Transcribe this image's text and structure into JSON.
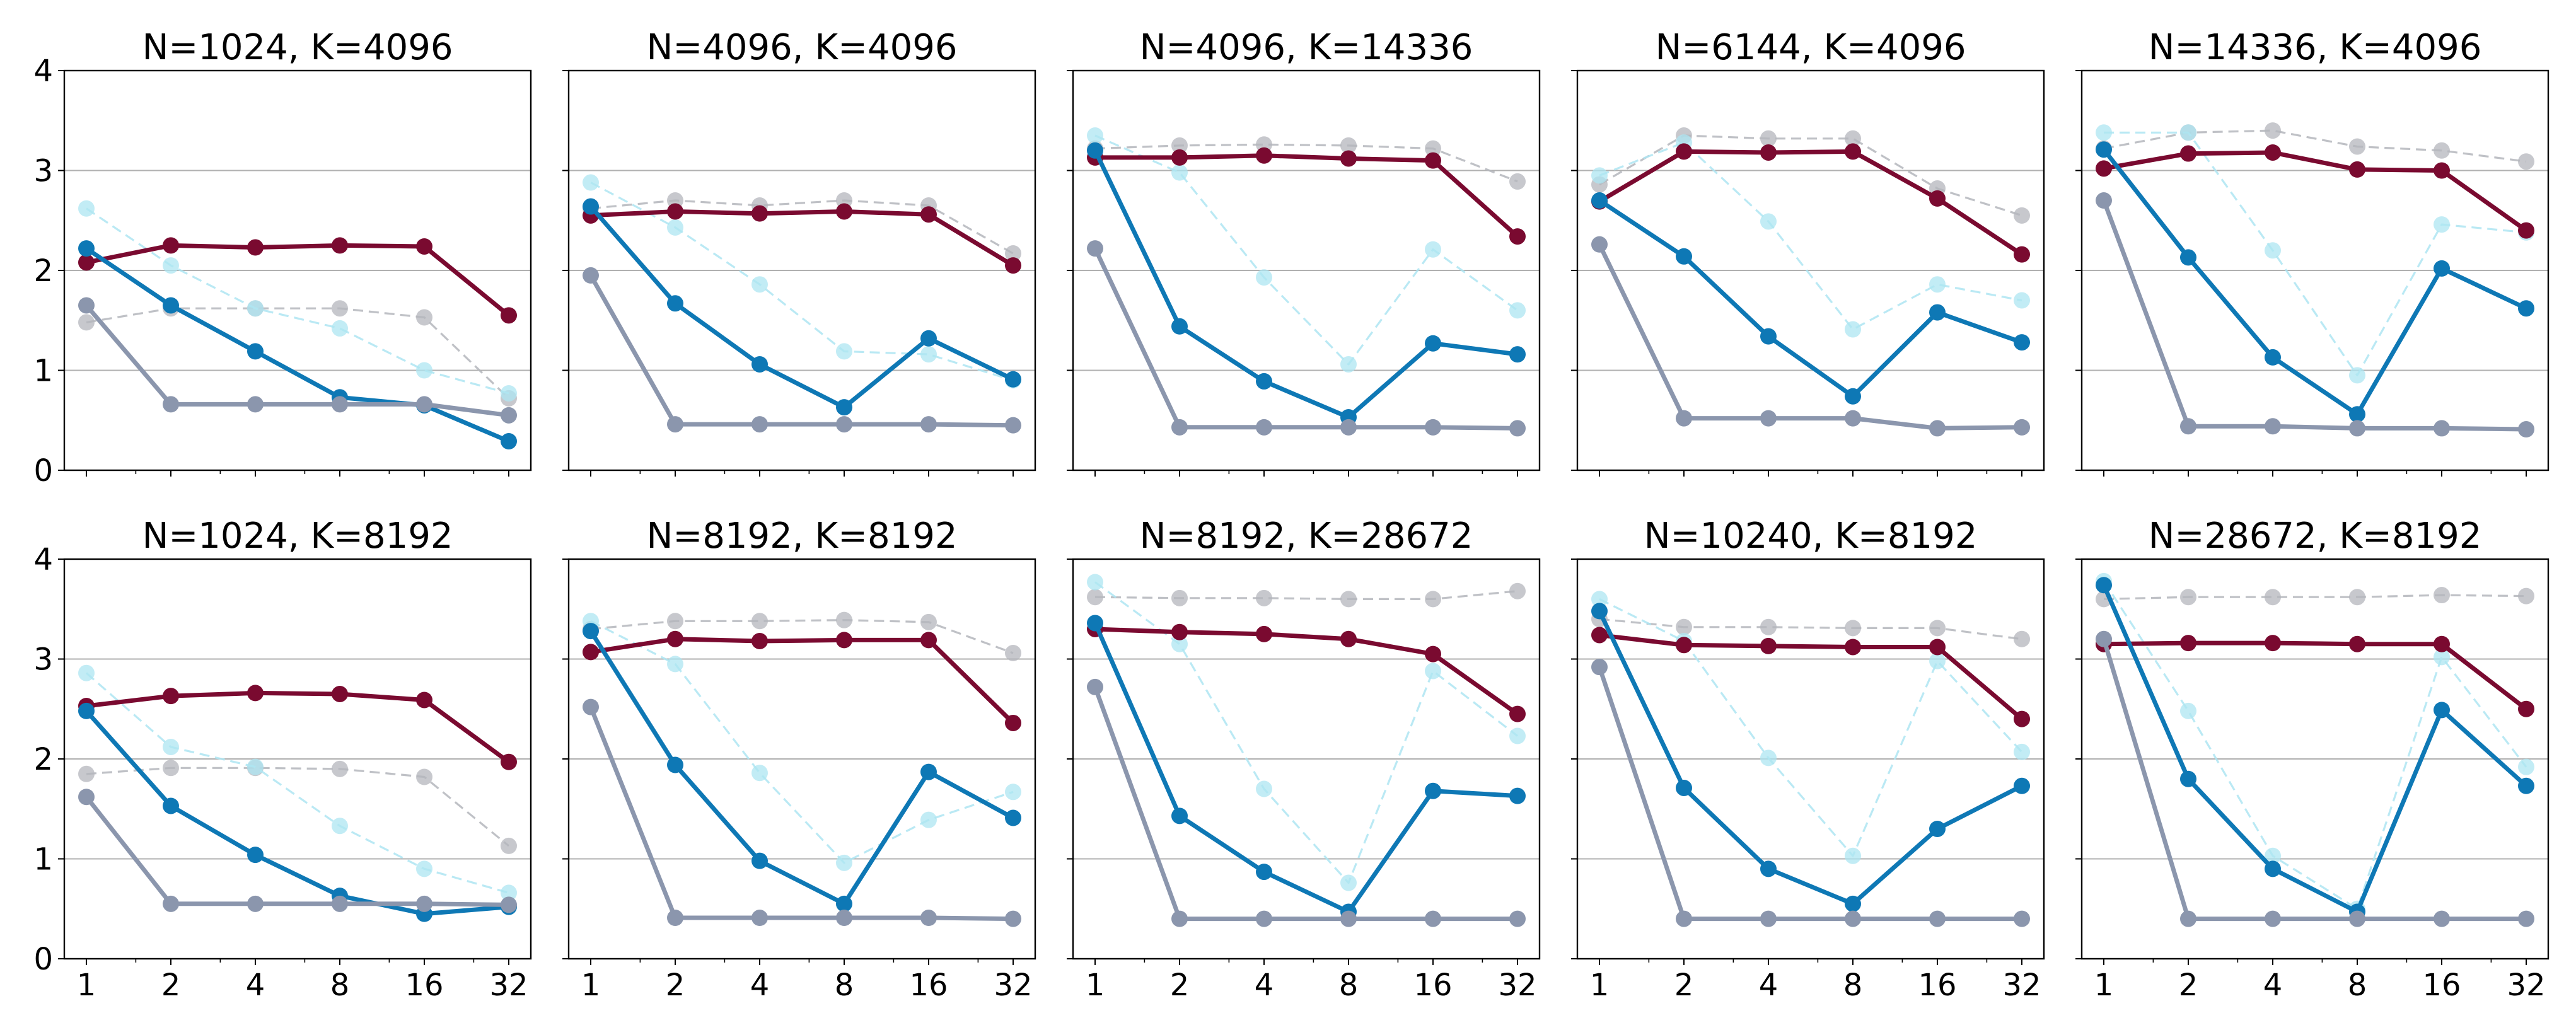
{
  "figure": {
    "chart_data": [
      {
        "type": "line",
        "title": "N=1024, K=4096",
        "x": [
          1,
          2,
          4,
          8,
          16,
          32
        ],
        "xscale": "log2",
        "ylim": [
          0,
          4
        ],
        "yticks": [
          0,
          1,
          2,
          3,
          4
        ],
        "grid": "horizontal",
        "series": [
          {
            "color": "#7a0a30",
            "style": "solid",
            "values": [
              2.08,
              2.25,
              2.23,
              2.25,
              2.24,
              1.55
            ]
          },
          {
            "color": "#0e78b5",
            "style": "solid",
            "values": [
              2.22,
              1.65,
              1.19,
              0.73,
              0.65,
              0.29
            ]
          },
          {
            "color": "#8b96ad",
            "style": "solid",
            "values": [
              1.65,
              0.66,
              0.66,
              0.66,
              0.66,
              0.55
            ]
          },
          {
            "color": "#b4b6bc",
            "style": "dashed",
            "values": [
              1.48,
              1.62,
              1.62,
              1.62,
              1.53,
              0.72
            ]
          },
          {
            "color": "#aee5f2",
            "style": "dashed",
            "values": [
              2.62,
              2.05,
              1.62,
              1.42,
              1.0,
              0.77
            ]
          }
        ]
      },
      {
        "type": "line",
        "title": "N=4096, K=4096",
        "x": [
          1,
          2,
          4,
          8,
          16,
          32
        ],
        "xscale": "log2",
        "ylim": [
          0,
          4
        ],
        "yticks": [
          0,
          1,
          2,
          3,
          4
        ],
        "grid": "horizontal",
        "series": [
          {
            "color": "#7a0a30",
            "style": "solid",
            "values": [
              2.55,
              2.59,
              2.57,
              2.59,
              2.56,
              2.05
            ]
          },
          {
            "color": "#0e78b5",
            "style": "solid",
            "values": [
              2.64,
              1.67,
              1.06,
              0.63,
              1.32,
              0.91
            ]
          },
          {
            "color": "#8b96ad",
            "style": "solid",
            "values": [
              1.95,
              0.46,
              0.46,
              0.46,
              0.46,
              0.45
            ]
          },
          {
            "color": "#b4b6bc",
            "style": "dashed",
            "values": [
              2.62,
              2.7,
              2.65,
              2.7,
              2.65,
              2.17
            ]
          },
          {
            "color": "#aee5f2",
            "style": "dashed",
            "values": [
              2.88,
              2.43,
              1.86,
              1.19,
              1.16,
              0.9
            ]
          }
        ]
      },
      {
        "type": "line",
        "title": "N=4096, K=14336",
        "x": [
          1,
          2,
          4,
          8,
          16,
          32
        ],
        "xscale": "log2",
        "ylim": [
          0,
          4
        ],
        "yticks": [
          0,
          1,
          2,
          3,
          4
        ],
        "grid": "horizontal",
        "series": [
          {
            "color": "#7a0a30",
            "style": "solid",
            "values": [
              3.13,
              3.13,
              3.15,
              3.12,
              3.1,
              2.34
            ]
          },
          {
            "color": "#0e78b5",
            "style": "solid",
            "values": [
              3.2,
              1.44,
              0.89,
              0.53,
              1.27,
              1.16
            ]
          },
          {
            "color": "#8b96ad",
            "style": "solid",
            "values": [
              2.22,
              0.43,
              0.43,
              0.43,
              0.43,
              0.42
            ]
          },
          {
            "color": "#b4b6bc",
            "style": "dashed",
            "values": [
              3.22,
              3.25,
              3.26,
              3.25,
              3.22,
              2.89
            ]
          },
          {
            "color": "#aee5f2",
            "style": "dashed",
            "values": [
              3.35,
              2.98,
              1.93,
              1.06,
              2.21,
              1.6
            ]
          }
        ]
      },
      {
        "type": "line",
        "title": "N=6144, K=4096",
        "x": [
          1,
          2,
          4,
          8,
          16,
          32
        ],
        "xscale": "log2",
        "ylim": [
          0,
          4
        ],
        "yticks": [
          0,
          1,
          2,
          3,
          4
        ],
        "grid": "horizontal",
        "series": [
          {
            "color": "#7a0a30",
            "style": "solid",
            "values": [
              2.69,
              3.19,
              3.18,
              3.19,
              2.72,
              2.16
            ]
          },
          {
            "color": "#0e78b5",
            "style": "solid",
            "values": [
              2.7,
              2.14,
              1.34,
              0.74,
              1.58,
              1.28
            ]
          },
          {
            "color": "#8b96ad",
            "style": "solid",
            "values": [
              2.26,
              0.52,
              0.52,
              0.52,
              0.42,
              0.43
            ]
          },
          {
            "color": "#b4b6bc",
            "style": "dashed",
            "values": [
              2.86,
              3.35,
              3.32,
              3.32,
              2.82,
              2.55
            ]
          },
          {
            "color": "#aee5f2",
            "style": "dashed",
            "values": [
              2.95,
              3.28,
              2.49,
              1.41,
              1.86,
              1.7
            ]
          }
        ]
      },
      {
        "type": "line",
        "title": "N=14336, K=4096",
        "x": [
          1,
          2,
          4,
          8,
          16,
          32
        ],
        "xscale": "log2",
        "ylim": [
          0,
          4
        ],
        "yticks": [
          0,
          1,
          2,
          3,
          4
        ],
        "grid": "horizontal",
        "series": [
          {
            "color": "#7a0a30",
            "style": "solid",
            "values": [
              3.02,
              3.17,
              3.18,
              3.01,
              3.0,
              2.4
            ]
          },
          {
            "color": "#0e78b5",
            "style": "solid",
            "values": [
              3.21,
              2.13,
              1.13,
              0.56,
              2.02,
              1.62
            ]
          },
          {
            "color": "#8b96ad",
            "style": "solid",
            "values": [
              2.7,
              0.44,
              0.44,
              0.42,
              0.42,
              0.41
            ]
          },
          {
            "color": "#b4b6bc",
            "style": "dashed",
            "values": [
              3.22,
              3.38,
              3.4,
              3.24,
              3.2,
              3.09
            ]
          },
          {
            "color": "#aee5f2",
            "style": "dashed",
            "values": [
              3.38,
              3.38,
              2.2,
              0.95,
              2.46,
              2.38
            ]
          }
        ]
      },
      {
        "type": "line",
        "title": "N=1024, K=8192",
        "x": [
          1,
          2,
          4,
          8,
          16,
          32
        ],
        "xscale": "log2",
        "ylim": [
          0,
          4
        ],
        "yticks": [
          0,
          1,
          2,
          3,
          4
        ],
        "grid": "horizontal",
        "series": [
          {
            "color": "#7a0a30",
            "style": "solid",
            "values": [
              2.53,
              2.63,
              2.66,
              2.65,
              2.59,
              1.97
            ]
          },
          {
            "color": "#0e78b5",
            "style": "solid",
            "values": [
              2.48,
              1.53,
              1.04,
              0.63,
              0.45,
              0.52
            ]
          },
          {
            "color": "#8b96ad",
            "style": "solid",
            "values": [
              1.62,
              0.55,
              0.55,
              0.55,
              0.55,
              0.54
            ]
          },
          {
            "color": "#b4b6bc",
            "style": "dashed",
            "values": [
              1.85,
              1.91,
              1.91,
              1.9,
              1.82,
              1.13
            ]
          },
          {
            "color": "#aee5f2",
            "style": "dashed",
            "values": [
              2.86,
              2.12,
              1.92,
              1.33,
              0.9,
              0.66
            ]
          }
        ]
      },
      {
        "type": "line",
        "title": "N=8192, K=8192",
        "x": [
          1,
          2,
          4,
          8,
          16,
          32
        ],
        "xscale": "log2",
        "ylim": [
          0,
          4
        ],
        "yticks": [
          0,
          1,
          2,
          3,
          4
        ],
        "grid": "horizontal",
        "series": [
          {
            "color": "#7a0a30",
            "style": "solid",
            "values": [
              3.07,
              3.2,
              3.18,
              3.19,
              3.19,
              2.36
            ]
          },
          {
            "color": "#0e78b5",
            "style": "solid",
            "values": [
              3.28,
              1.94,
              0.98,
              0.55,
              1.87,
              1.41
            ]
          },
          {
            "color": "#8b96ad",
            "style": "solid",
            "values": [
              2.52,
              0.41,
              0.41,
              0.41,
              0.41,
              0.4
            ]
          },
          {
            "color": "#b4b6bc",
            "style": "dashed",
            "values": [
              3.3,
              3.38,
              3.38,
              3.39,
              3.37,
              3.06
            ]
          },
          {
            "color": "#aee5f2",
            "style": "dashed",
            "values": [
              3.38,
              2.95,
              1.86,
              0.96,
              1.39,
              1.67
            ]
          }
        ]
      },
      {
        "type": "line",
        "title": "N=8192, K=28672",
        "x": [
          1,
          2,
          4,
          8,
          16,
          32
        ],
        "xscale": "log2",
        "ylim": [
          0,
          4
        ],
        "yticks": [
          0,
          1,
          2,
          3,
          4
        ],
        "grid": "horizontal",
        "series": [
          {
            "color": "#7a0a30",
            "style": "solid",
            "values": [
              3.3,
              3.27,
              3.25,
              3.2,
              3.05,
              2.45
            ]
          },
          {
            "color": "#0e78b5",
            "style": "solid",
            "values": [
              3.36,
              1.43,
              0.87,
              0.47,
              1.68,
              1.63
            ]
          },
          {
            "color": "#8b96ad",
            "style": "solid",
            "values": [
              2.72,
              0.4,
              0.4,
              0.4,
              0.4,
              0.4
            ]
          },
          {
            "color": "#b4b6bc",
            "style": "dashed",
            "values": [
              3.62,
              3.61,
              3.61,
              3.6,
              3.6,
              3.68
            ]
          },
          {
            "color": "#aee5f2",
            "style": "dashed",
            "values": [
              3.77,
              3.15,
              1.7,
              0.76,
              2.88,
              2.23
            ]
          }
        ]
      },
      {
        "type": "line",
        "title": "N=10240, K=8192",
        "x": [
          1,
          2,
          4,
          8,
          16,
          32
        ],
        "xscale": "log2",
        "ylim": [
          0,
          4
        ],
        "yticks": [
          0,
          1,
          2,
          3,
          4
        ],
        "grid": "horizontal",
        "series": [
          {
            "color": "#7a0a30",
            "style": "solid",
            "values": [
              3.24,
              3.14,
              3.13,
              3.12,
              3.12,
              2.4
            ]
          },
          {
            "color": "#0e78b5",
            "style": "solid",
            "values": [
              3.48,
              1.71,
              0.9,
              0.55,
              1.3,
              1.73
            ]
          },
          {
            "color": "#8b96ad",
            "style": "solid",
            "values": [
              2.92,
              0.4,
              0.4,
              0.4,
              0.4,
              0.4
            ]
          },
          {
            "color": "#b4b6bc",
            "style": "dashed",
            "values": [
              3.4,
              3.32,
              3.32,
              3.31,
              3.31,
              3.2
            ]
          },
          {
            "color": "#aee5f2",
            "style": "dashed",
            "values": [
              3.6,
              3.18,
              2.01,
              1.03,
              2.98,
              2.07
            ]
          }
        ]
      },
      {
        "type": "line",
        "title": "N=28672, K=8192",
        "x": [
          1,
          2,
          4,
          8,
          16,
          32
        ],
        "xscale": "log2",
        "ylim": [
          0,
          4
        ],
        "yticks": [
          0,
          1,
          2,
          3,
          4
        ],
        "grid": "horizontal",
        "series": [
          {
            "color": "#7a0a30",
            "style": "solid",
            "values": [
              3.15,
              3.16,
              3.16,
              3.15,
              3.15,
              2.5
            ]
          },
          {
            "color": "#0e78b5",
            "style": "solid",
            "values": [
              3.74,
              1.8,
              0.9,
              0.47,
              2.49,
              1.73
            ]
          },
          {
            "color": "#8b96ad",
            "style": "solid",
            "values": [
              3.2,
              0.4,
              0.4,
              0.4,
              0.4,
              0.4
            ]
          },
          {
            "color": "#b4b6bc",
            "style": "dashed",
            "values": [
              3.6,
              3.62,
              3.62,
              3.62,
              3.64,
              3.63
            ]
          },
          {
            "color": "#aee5f2",
            "style": "dashed",
            "values": [
              3.78,
              2.48,
              1.03,
              0.5,
              3.02,
              1.92
            ]
          }
        ]
      }
    ]
  }
}
